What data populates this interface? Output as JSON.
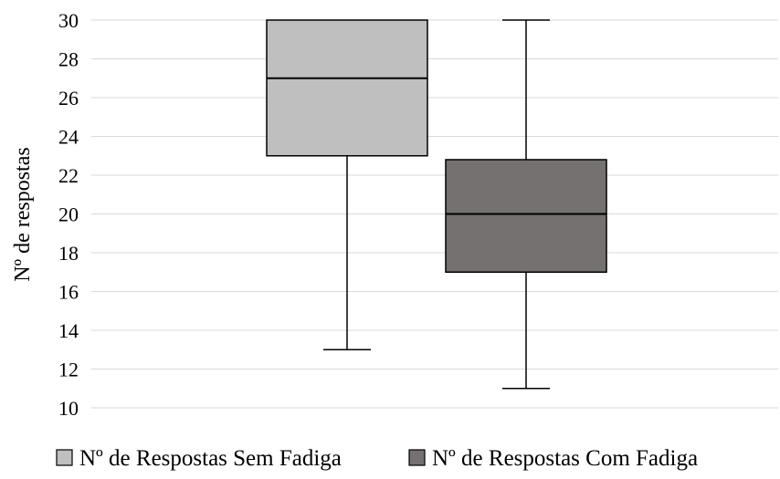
{
  "chart_data": {
    "type": "boxplot",
    "ylabel": "Nº de respostas",
    "ylim": [
      10,
      30
    ],
    "y_ticks": [
      10,
      12,
      14,
      16,
      18,
      20,
      22,
      24,
      26,
      28,
      30
    ],
    "grid": true,
    "legend_position": "bottom",
    "series": [
      {
        "name": "Nº de Respostas Sem Fadiga",
        "color": "#bfbfbf",
        "min": 13,
        "q1": 23,
        "median": 27,
        "q3": 30,
        "max": 30
      },
      {
        "name": "Nº de Respostas Com Fadiga",
        "color": "#767171",
        "min": 11,
        "q1": 17,
        "median": 20,
        "q3": 22.8,
        "max": 30
      }
    ]
  }
}
